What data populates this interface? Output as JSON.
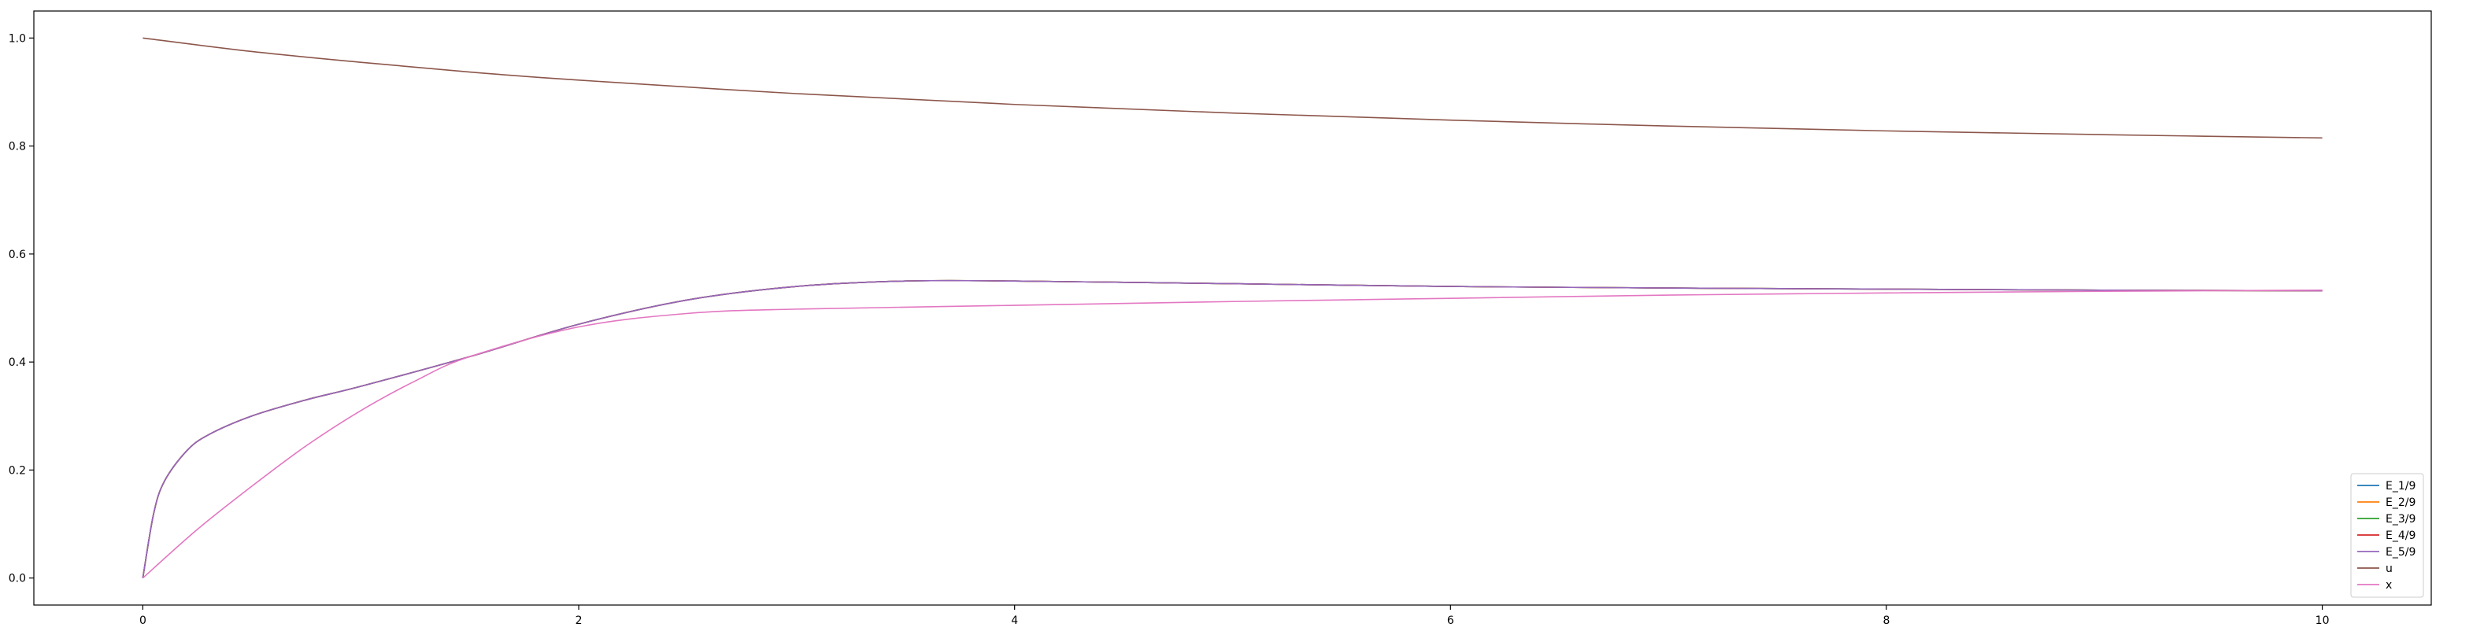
{
  "chart_data": {
    "type": "line",
    "title": "",
    "xlabel": "",
    "ylabel": "",
    "xlim": [
      -0.5,
      10.5
    ],
    "ylim": [
      -0.05,
      1.05
    ],
    "grid": false,
    "legend_position": "lower-right",
    "x_ticks": [
      0,
      2,
      4,
      6,
      8,
      10
    ],
    "x_tick_labels": [
      "0",
      "2",
      "4",
      "6",
      "8",
      "10"
    ],
    "y_ticks": [
      0.0,
      0.2,
      0.4,
      0.6,
      0.8,
      1.0
    ],
    "y_tick_labels": [
      "0.0",
      "0.2",
      "0.4",
      "0.6",
      "0.8",
      "1.0"
    ],
    "series": [
      {
        "name": "E_1/9",
        "color": "#1f77b4",
        "x": [
          0,
          0.05,
          0.1,
          0.2,
          0.3,
          0.5,
          0.75,
          1,
          1.5,
          2,
          2.5,
          3,
          3.5,
          4,
          5,
          6,
          7,
          8,
          9,
          10
        ],
        "y": [
          0,
          0.12,
          0.18,
          0.235,
          0.265,
          0.3,
          0.33,
          0.355,
          0.41,
          0.47,
          0.515,
          0.54,
          0.55,
          0.55,
          0.545,
          0.54,
          0.537,
          0.535,
          0.533,
          0.532
        ]
      },
      {
        "name": "E_2/9",
        "color": "#ff7f0e",
        "x": [
          0,
          0.05,
          0.1,
          0.2,
          0.3,
          0.5,
          0.75,
          1,
          1.5,
          2,
          2.5,
          3,
          3.5,
          4,
          5,
          6,
          7,
          8,
          9,
          10
        ],
        "y": [
          0,
          0.12,
          0.18,
          0.235,
          0.265,
          0.3,
          0.33,
          0.355,
          0.41,
          0.47,
          0.515,
          0.54,
          0.55,
          0.55,
          0.545,
          0.54,
          0.537,
          0.535,
          0.533,
          0.532
        ]
      },
      {
        "name": "E_3/9",
        "color": "#2ca02c",
        "x": [
          0,
          0.05,
          0.1,
          0.2,
          0.3,
          0.5,
          0.75,
          1,
          1.5,
          2,
          2.5,
          3,
          3.5,
          4,
          5,
          6,
          7,
          8,
          9,
          10
        ],
        "y": [
          0,
          0.12,
          0.18,
          0.235,
          0.265,
          0.3,
          0.33,
          0.355,
          0.41,
          0.47,
          0.515,
          0.54,
          0.55,
          0.55,
          0.545,
          0.54,
          0.537,
          0.535,
          0.533,
          0.532
        ]
      },
      {
        "name": "E_4/9",
        "color": "#d62728",
        "x": [
          0,
          0.05,
          0.1,
          0.2,
          0.3,
          0.5,
          0.75,
          1,
          1.5,
          2,
          2.5,
          3,
          3.5,
          4,
          5,
          6,
          7,
          8,
          9,
          10
        ],
        "y": [
          0,
          0.12,
          0.18,
          0.235,
          0.265,
          0.3,
          0.33,
          0.355,
          0.41,
          0.47,
          0.515,
          0.54,
          0.55,
          0.55,
          0.545,
          0.54,
          0.537,
          0.535,
          0.533,
          0.532
        ]
      },
      {
        "name": "E_5/9",
        "color": "#9467bd",
        "x": [
          0,
          0.05,
          0.1,
          0.2,
          0.3,
          0.5,
          0.75,
          1,
          1.5,
          2,
          2.5,
          3,
          3.5,
          4,
          5,
          6,
          7,
          8,
          9,
          10
        ],
        "y": [
          0,
          0.12,
          0.18,
          0.235,
          0.265,
          0.3,
          0.33,
          0.355,
          0.41,
          0.47,
          0.515,
          0.54,
          0.55,
          0.55,
          0.545,
          0.54,
          0.537,
          0.535,
          0.533,
          0.532
        ]
      },
      {
        "name": "u",
        "color": "#8c564b",
        "x": [
          0,
          0.5,
          1,
          1.5,
          2,
          3,
          4,
          5,
          6,
          7,
          8,
          9,
          10
        ],
        "y": [
          1.0,
          0.975,
          0.955,
          0.937,
          0.922,
          0.897,
          0.877,
          0.861,
          0.848,
          0.837,
          0.828,
          0.821,
          0.815
        ]
      },
      {
        "name": "x",
        "color": "#e377c2",
        "x": [
          0,
          0.25,
          0.5,
          0.75,
          1,
          1.25,
          1.5,
          2,
          2.5,
          3,
          4,
          5,
          6,
          7,
          8,
          9,
          10
        ],
        "y": [
          0,
          0.09,
          0.17,
          0.245,
          0.31,
          0.365,
          0.41,
          0.465,
          0.49,
          0.498,
          0.505,
          0.512,
          0.518,
          0.524,
          0.528,
          0.531,
          0.533
        ]
      }
    ]
  }
}
